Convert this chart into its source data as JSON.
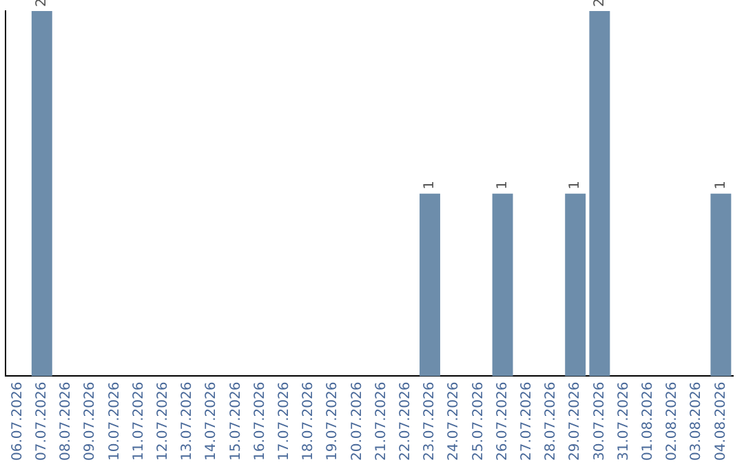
{
  "chart_data": {
    "type": "bar",
    "categories": [
      "06.07.2026",
      "07.07.2026",
      "08.07.2026",
      "09.07.2026",
      "10.07.2026",
      "11.07.2026",
      "12.07.2026",
      "13.07.2026",
      "14.07.2026",
      "15.07.2026",
      "16.07.2026",
      "17.07.2026",
      "18.07.2026",
      "19.07.2026",
      "20.07.2026",
      "21.07.2026",
      "22.07.2026",
      "23.07.2026",
      "24.07.2026",
      "25.07.2026",
      "26.07.2026",
      "27.07.2026",
      "28.07.2026",
      "29.07.2026",
      "30.07.2026",
      "31.07.2026",
      "01.08.2026",
      "02.08.2026",
      "03.08.2026",
      "04.08.2026"
    ],
    "values": [
      0,
      2,
      0,
      0,
      0,
      0,
      0,
      0,
      0,
      0,
      0,
      0,
      0,
      0,
      0,
      0,
      0,
      1,
      0,
      0,
      1,
      0,
      0,
      1,
      2,
      0,
      0,
      0,
      0,
      1
    ],
    "value_labels": [
      null,
      "2",
      null,
      null,
      null,
      null,
      null,
      null,
      null,
      null,
      null,
      null,
      null,
      null,
      null,
      null,
      null,
      "1",
      null,
      null,
      "1",
      null,
      null,
      "1",
      "2",
      null,
      null,
      null,
      null,
      "1"
    ],
    "color": "#6d8dab",
    "ylim": [
      0,
      2
    ],
    "tick_labels": "x",
    "grid": false,
    "legend": false
  }
}
